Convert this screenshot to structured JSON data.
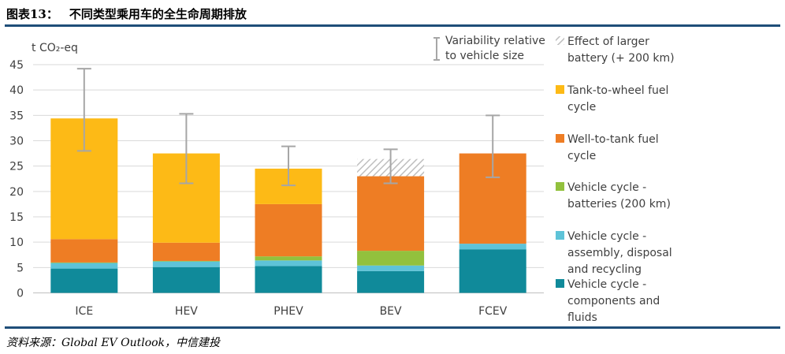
{
  "header": {
    "label": "图表13：",
    "title": "不同类型乘用车的全生命周期排放"
  },
  "source": "资料来源：Global EV Outlook，中信建投",
  "chart_data": {
    "type": "bar",
    "stacked": true,
    "unit_label": "t CO₂-eq",
    "categories": [
      "ICE",
      "HEV",
      "PHEV",
      "BEV",
      "FCEV"
    ],
    "ylim": [
      0,
      45
    ],
    "yticks": [
      "0",
      "5",
      "10",
      "15",
      "20",
      "25",
      "30",
      "35",
      "40",
      "45"
    ],
    "grid": true,
    "legend_position": "right",
    "series": [
      {
        "name": "Vehicle cycle - components and fluids",
        "color": "#108a9a",
        "values": [
          4.8,
          5.1,
          5.3,
          4.3,
          8.6
        ]
      },
      {
        "name": "Vehicle cycle - assembly, disposal and recycling",
        "color": "#5ec3d8",
        "values": [
          1.1,
          1.1,
          1.1,
          1.1,
          1.1
        ]
      },
      {
        "name": "Vehicle cycle - batteries (200 km)",
        "color": "#92c13d",
        "values": [
          0.1,
          0.1,
          0.8,
          2.9,
          0.0
        ]
      },
      {
        "name": "Well-to-tank fuel cycle",
        "color": "#ee7d24",
        "values": [
          4.6,
          3.6,
          10.3,
          14.7,
          17.8
        ]
      },
      {
        "name": "Tank-to-wheel fuel cycle",
        "color": "#fdba16",
        "values": [
          23.8,
          17.6,
          7.0,
          0.0,
          0.0
        ]
      },
      {
        "name": "Effect of larger battery (+ 200 km)",
        "color": "#bfbfbf",
        "pattern": "hatched",
        "values": [
          0.0,
          0.0,
          0.0,
          3.4,
          0.0
        ]
      }
    ],
    "error_bars": {
      "name": "Variability relative to vehicle size",
      "color": "#a6a6a6",
      "center": [
        34.4,
        27.5,
        24.6,
        23.0,
        27.5
      ],
      "low": [
        28.0,
        21.6,
        21.2,
        21.6,
        22.8
      ],
      "high": [
        44.2,
        35.3,
        28.9,
        28.3,
        35.0
      ]
    },
    "legend": [
      {
        "series": "Effect of larger battery (+ 200 km)",
        "lines": [
          "Effect of larger",
          "battery (+ 200 km)"
        ]
      },
      {
        "series": "Tank-to-wheel fuel cycle",
        "lines": [
          "Tank-to-wheel fuel",
          "cycle"
        ]
      },
      {
        "series": "Well-to-tank fuel cycle",
        "lines": [
          "Well-to-tank fuel",
          "cycle"
        ]
      },
      {
        "series": "Vehicle cycle - batteries (200 km)",
        "lines": [
          "Vehicle cycle -",
          "batteries (200 km)"
        ]
      },
      {
        "series": "Vehicle cycle - assembly, disposal and recycling",
        "lines": [
          "Vehicle cycle -",
          "assembly, disposal",
          "and recycling"
        ]
      },
      {
        "series": "Vehicle cycle - components and fluids",
        "lines": [
          "Vehicle cycle -",
          "components and",
          "fluids"
        ]
      }
    ],
    "variability_legend": [
      "Variability relative",
      "to vehicle size"
    ]
  }
}
